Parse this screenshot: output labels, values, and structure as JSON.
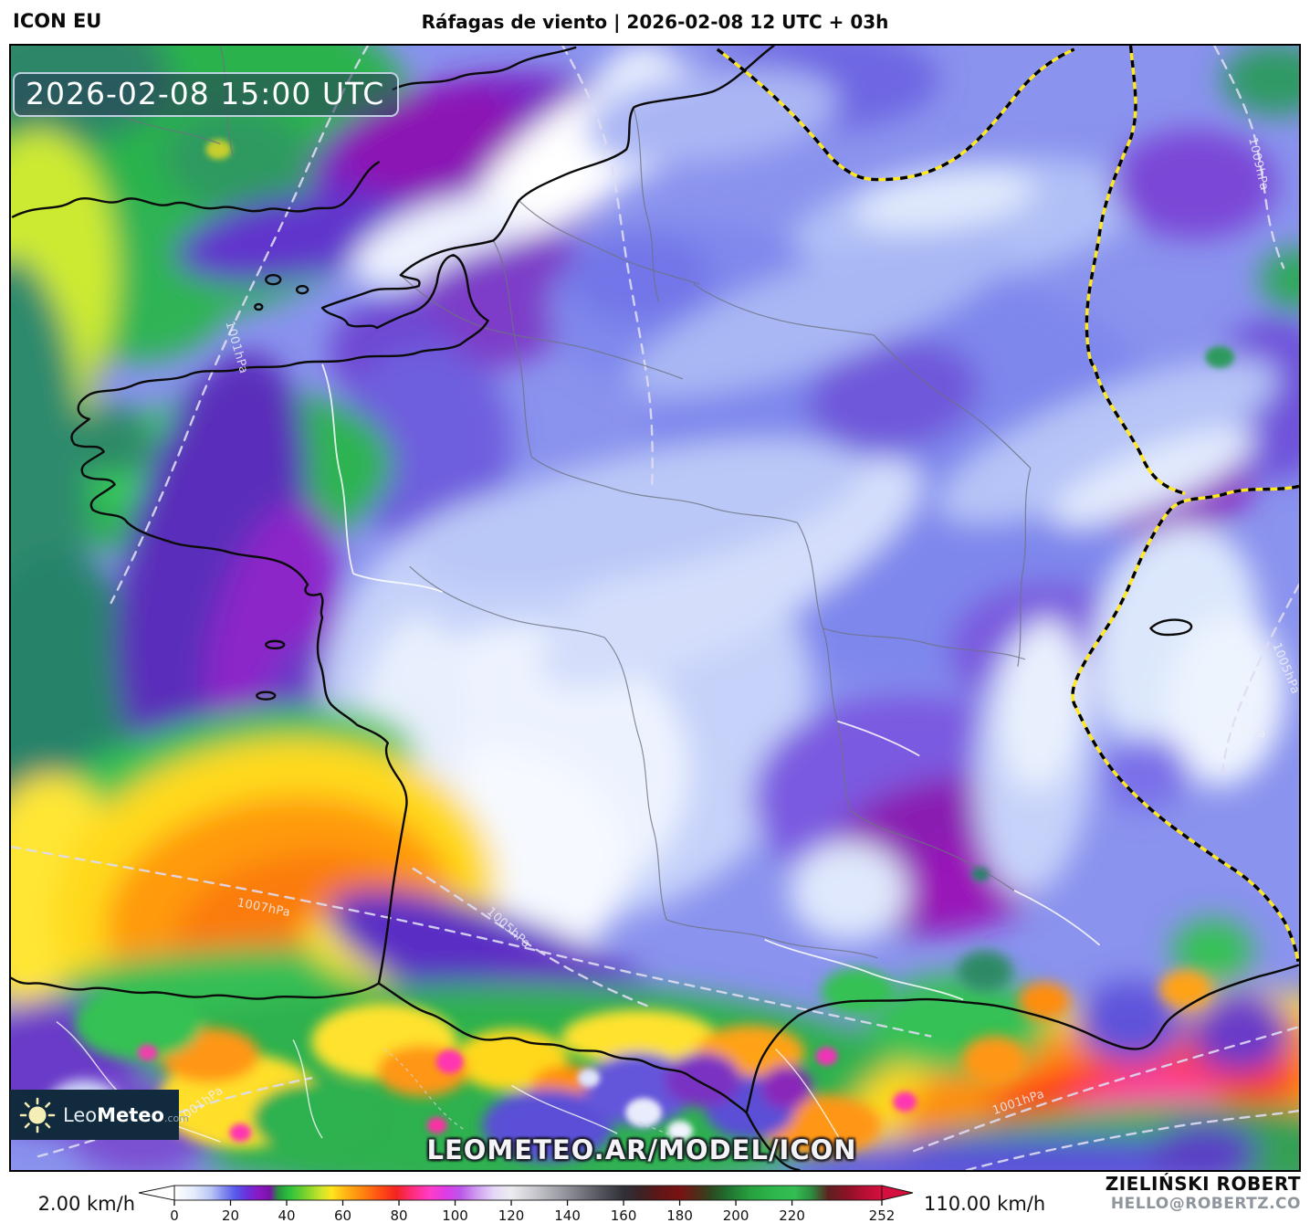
{
  "header": {
    "model": "ICON EU",
    "title": "Ráfagas de viento | 2026-02-08 12 UTC + 03h"
  },
  "map": {
    "timestamp": "2026-02-08 15:00 UTC",
    "watermark": "LEOMETEO.AR/MODEL/ICON",
    "isobar_labels": [
      {
        "text": "1001hPa"
      },
      {
        "text": "1005hPa"
      },
      {
        "text": "1007hPa"
      },
      {
        "text": "1001hPa"
      },
      {
        "text": "1009hPa"
      },
      {
        "text": "1005hPa"
      },
      {
        "text": "1007hPa"
      },
      {
        "text": "1001hPa"
      }
    ]
  },
  "logo": {
    "name_light": "Leo",
    "name_bold": "Meteo",
    "tld": ".com"
  },
  "legend": {
    "min_label": "2.00 km/h",
    "max_label": "110.00 km/h",
    "ticks": [
      "0",
      "20",
      "40",
      "60",
      "80",
      "100",
      "120",
      "140",
      "160",
      "180",
      "200",
      "220",
      "252"
    ],
    "scale_max": 252,
    "arrow_left_color": "#ffffff",
    "arrow_right_color": "#d60f3f",
    "gradient": [
      {
        "v": 0,
        "c": "#ffffff"
      },
      {
        "v": 7,
        "c": "#e4ebfa"
      },
      {
        "v": 13,
        "c": "#b9c6f5"
      },
      {
        "v": 18,
        "c": "#7e84ee"
      },
      {
        "v": 22,
        "c": "#5656ea"
      },
      {
        "v": 26,
        "c": "#6c2fd8"
      },
      {
        "v": 30,
        "c": "#8a18c4"
      },
      {
        "v": 34,
        "c": "#7a12a8"
      },
      {
        "v": 37,
        "c": "#28913d"
      },
      {
        "v": 41,
        "c": "#2cc23e"
      },
      {
        "v": 47,
        "c": "#7ed32c"
      },
      {
        "v": 52,
        "c": "#c8e52c"
      },
      {
        "v": 56,
        "c": "#ffe51e"
      },
      {
        "v": 61,
        "c": "#ffb514"
      },
      {
        "v": 67,
        "c": "#ff8510"
      },
      {
        "v": 73,
        "c": "#ff5014"
      },
      {
        "v": 79,
        "c": "#f22420"
      },
      {
        "v": 85,
        "c": "#ff2d80"
      },
      {
        "v": 91,
        "c": "#ff3cc8"
      },
      {
        "v": 97,
        "c": "#dc3ce6"
      },
      {
        "v": 102,
        "c": "#bc57ea"
      },
      {
        "v": 108,
        "c": "#cfa0f0"
      },
      {
        "v": 114,
        "c": "#e6d8f8"
      },
      {
        "v": 120,
        "c": "#ececf0"
      },
      {
        "v": 128,
        "c": "#c9c9cf"
      },
      {
        "v": 136,
        "c": "#a3a3ab"
      },
      {
        "v": 144,
        "c": "#7b7b84"
      },
      {
        "v": 152,
        "c": "#53535c"
      },
      {
        "v": 160,
        "c": "#303038"
      },
      {
        "v": 166,
        "c": "#3c2326"
      },
      {
        "v": 172,
        "c": "#5c1717"
      },
      {
        "v": 180,
        "c": "#7a1212"
      },
      {
        "v": 186,
        "c": "#532a18"
      },
      {
        "v": 191,
        "c": "#2e481f"
      },
      {
        "v": 197,
        "c": "#207030"
      },
      {
        "v": 205,
        "c": "#27a03e"
      },
      {
        "v": 214,
        "c": "#2eb84c"
      },
      {
        "v": 221,
        "c": "#34bd52"
      },
      {
        "v": 227,
        "c": "#2d8b3e"
      },
      {
        "v": 233,
        "c": "#5e2020"
      },
      {
        "v": 240,
        "c": "#8f1126"
      },
      {
        "v": 246,
        "c": "#b80f33"
      },
      {
        "v": 252,
        "c": "#d60f3f"
      }
    ]
  },
  "credits": {
    "name": "ZIELIŃSKI ROBERT",
    "email": "HELLO@ROBERTZ.CO"
  }
}
